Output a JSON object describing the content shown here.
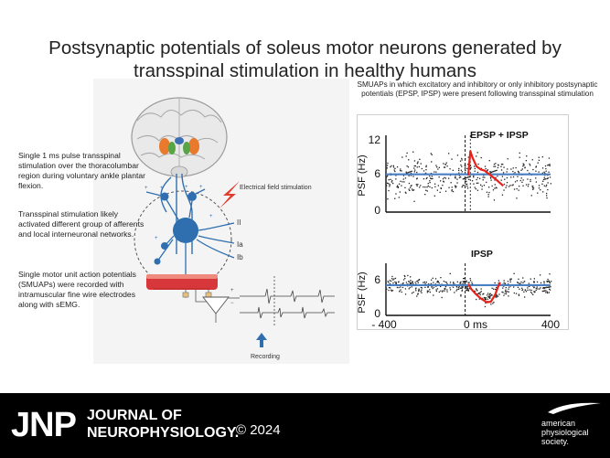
{
  "title": "Postsynaptic potentials of soleus motor neurons generated by transspinal stimulation in healthy humans",
  "left_texts": [
    "Single 1 ms pulse transspinal stimulation over the thoracolumbar region during voluntary ankle plantar flexion.",
    "Transspinal stimulation likely activated different group of afferents and local interneuronal networks.",
    "Single motor unit action potentials (SMUAPs) were recorded with intramuscular fine wire electrodes along with sEMG."
  ],
  "diagram": {
    "stim_label": "Electrical field stimulation",
    "afferent_labels": [
      "II",
      "Ia",
      "Ib"
    ],
    "recording_label": "Recording"
  },
  "subtitle": "SMUAPs in which excitatory and inhibitory or only inhibitory postsynaptic potentials (EPSP, IPSP) were present following transspinal stimulation",
  "chart_data": [
    {
      "type": "scatter",
      "title": "EPSP + IPSP",
      "ylabel": "PSF (Hz)",
      "yticks": [
        "12",
        "6",
        "0"
      ],
      "ylim": [
        0,
        12
      ],
      "xlim": [
        -400,
        400
      ],
      "baseline": 6.2,
      "colors": {
        "points": "#222222",
        "baseline": "#4a7fc1",
        "trace": "#e8221b"
      },
      "trace": {
        "x": [
          0,
          10,
          20,
          40,
          60,
          80,
          110,
          140,
          170
        ],
        "y": [
          6.0,
          10.0,
          9.0,
          7.5,
          7.0,
          6.8,
          6.0,
          5.2,
          4.3
        ]
      }
    },
    {
      "type": "scatter",
      "title": "IPSP",
      "ylabel": "PSF (Hz)",
      "yticks": [
        "6",
        "0"
      ],
      "ylim": [
        0,
        8.5
      ],
      "xlim": [
        -400,
        400
      ],
      "xticks": [
        "- 400",
        "0 ms",
        "400"
      ],
      "baseline": 5.3,
      "colors": {
        "points": "#222222",
        "baseline": "#4a7fc1",
        "trace": "#e8221b"
      },
      "trace": {
        "x": [
          0,
          15,
          35,
          60,
          90,
          110,
          130,
          145,
          155
        ],
        "y": [
          5.5,
          4.6,
          3.8,
          3.0,
          2.3,
          2.4,
          3.6,
          5.0,
          5.8
        ]
      }
    }
  ],
  "footer": {
    "logo": "JNP",
    "journal_line1": "JOURNAL OF",
    "journal_line2": "NEUROPHYSIOLOGY.",
    "copyright": "© 2024",
    "society": [
      "american",
      "physiological",
      "society."
    ]
  }
}
